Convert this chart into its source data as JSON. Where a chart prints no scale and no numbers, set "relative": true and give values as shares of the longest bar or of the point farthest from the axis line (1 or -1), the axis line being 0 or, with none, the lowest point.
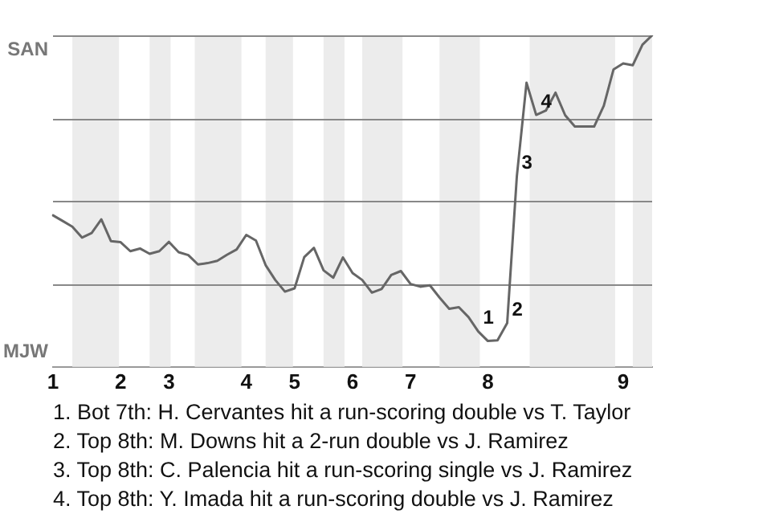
{
  "chart_data": {
    "type": "line",
    "relative": true,
    "categories": [
      "1",
      null,
      null,
      null,
      null,
      null,
      null,
      "2",
      null,
      null,
      null,
      null,
      "3",
      null,
      null,
      null,
      null,
      null,
      null,
      null,
      "4",
      null,
      null,
      null,
      null,
      "5",
      null,
      null,
      null,
      null,
      null,
      "6",
      null,
      null,
      null,
      null,
      null,
      "7",
      null,
      null,
      null,
      null,
      null,
      null,
      null,
      "8",
      null,
      null,
      null,
      null,
      null,
      null,
      null,
      null,
      null,
      null,
      null,
      null,
      null,
      "9",
      null,
      null,
      null
    ],
    "series": [
      {
        "color": "#666666",
        "values": [
          0.457,
          0.44,
          0.423,
          0.39,
          0.404,
          0.445,
          0.379,
          0.376,
          0.349,
          0.357,
          0.341,
          0.349,
          0.377,
          0.346,
          0.337,
          0.309,
          0.313,
          0.32,
          0.338,
          0.354,
          0.398,
          0.381,
          0.307,
          0.262,
          0.227,
          0.237,
          0.331,
          0.359,
          0.291,
          0.269,
          0.33,
          0.283,
          0.262,
          0.224,
          0.235,
          0.277,
          0.289,
          0.25,
          0.242,
          0.246,
          0.209,
          0.175,
          0.18,
          0.15,
          0.107,
          0.078,
          0.08,
          0.132,
          0.575,
          0.857,
          0.76,
          0.773,
          0.827,
          0.759,
          0.725,
          0.725,
          0.725,
          0.788,
          0.897,
          0.915,
          0.91,
          0.972,
          1
        ]
      }
    ],
    "legend": false,
    "marker": "none",
    "line_style": "solid",
    "grid": "y",
    "annotations": [
      "SAN",
      "MJW",
      "1",
      "2",
      "3",
      "4",
      "1. Bot 7th: H. Cervantes hit a run-scoring double vs T. Taylor",
      "2. Top 8th: M. Downs hit a 2-run double vs J. Ramirez",
      "3. Top 8th: C. Palencia hit a run-scoring single vs J. Ramirez",
      "4. Top 8th: Y. Imada hit a run-scoring double vs J. Ramirez"
    ]
  }
}
